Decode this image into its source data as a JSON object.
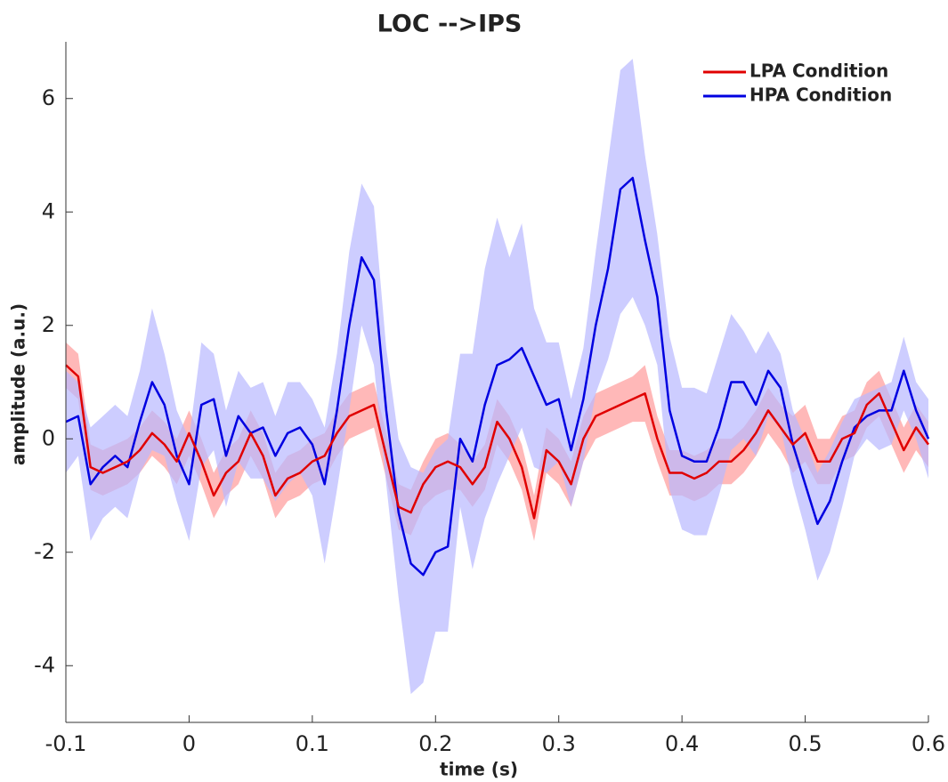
{
  "chart_data": {
    "type": "line",
    "title": "LOC -->IPS",
    "x_label": "time (s)",
    "y_label": "amplitude (a.u.)",
    "x": [
      -0.1,
      -0.09,
      -0.08,
      -0.07,
      -0.06,
      -0.05,
      -0.04,
      -0.03,
      -0.02,
      -0.01,
      0,
      0.01,
      0.02,
      0.03,
      0.04,
      0.05,
      0.06,
      0.07,
      0.08,
      0.09,
      0.1,
      0.11,
      0.12,
      0.13,
      0.14,
      0.15,
      0.16,
      0.17,
      0.18,
      0.19,
      0.2,
      0.21,
      0.22,
      0.23,
      0.24,
      0.25,
      0.26,
      0.27,
      0.28,
      0.29,
      0.3,
      0.31,
      0.32,
      0.33,
      0.34,
      0.35,
      0.36,
      0.37,
      0.38,
      0.39,
      0.4,
      0.41,
      0.42,
      0.43,
      0.44,
      0.45,
      0.46,
      0.47,
      0.48,
      0.49,
      0.5,
      0.51,
      0.52,
      0.53,
      0.54,
      0.55,
      0.56,
      0.57,
      0.58,
      0.59,
      0.6
    ],
    "series": [
      {
        "name": "LPA Condition",
        "color": "#e00000",
        "band_color": "#ff9a9a",
        "values": [
          1.3,
          1.1,
          -0.5,
          -0.6,
          -0.5,
          -0.4,
          -0.2,
          0.1,
          -0.1,
          -0.4,
          0.1,
          -0.4,
          -1.0,
          -0.6,
          -0.4,
          0.1,
          -0.3,
          -1.0,
          -0.7,
          -0.6,
          -0.4,
          -0.3,
          0.1,
          0.4,
          0.5,
          0.6,
          -0.3,
          -1.2,
          -1.3,
          -0.8,
          -0.5,
          -0.4,
          -0.5,
          -0.8,
          -0.5,
          0.3,
          0.0,
          -0.5,
          -1.4,
          -0.2,
          -0.4,
          -0.8,
          0.0,
          0.4,
          0.5,
          0.6,
          0.7,
          0.8,
          0.0,
          -0.6,
          -0.6,
          -0.7,
          -0.6,
          -0.4,
          -0.4,
          -0.2,
          0.1,
          0.5,
          0.2,
          -0.1,
          0.1,
          -0.4,
          -0.4,
          0.0,
          0.1,
          0.6,
          0.8,
          0.3,
          -0.2,
          0.2,
          -0.1
        ],
        "upper": [
          1.7,
          1.5,
          -0.1,
          -0.2,
          -0.1,
          0.0,
          0.2,
          0.5,
          0.3,
          0.0,
          0.5,
          0.0,
          -0.6,
          -0.2,
          0.0,
          0.5,
          0.1,
          -0.6,
          -0.3,
          -0.2,
          0.0,
          0.1,
          0.5,
          0.8,
          0.9,
          1.0,
          0.1,
          -0.8,
          -0.9,
          -0.4,
          0.0,
          0.1,
          -0.1,
          -0.4,
          -0.1,
          0.7,
          0.4,
          -0.1,
          -1.0,
          0.2,
          0.0,
          -0.4,
          0.4,
          0.8,
          0.9,
          1.0,
          1.1,
          1.3,
          0.4,
          -0.2,
          -0.2,
          -0.3,
          -0.2,
          0.0,
          0.0,
          0.2,
          0.5,
          0.9,
          0.6,
          0.4,
          0.6,
          0.0,
          0.0,
          0.4,
          0.5,
          1.0,
          1.2,
          0.7,
          0.2,
          0.6,
          0.3
        ],
        "lower": [
          0.9,
          0.7,
          -0.9,
          -1.0,
          -0.9,
          -0.8,
          -0.6,
          -0.3,
          -0.5,
          -0.8,
          -0.3,
          -0.8,
          -1.4,
          -1.0,
          -0.8,
          -0.3,
          -0.7,
          -1.4,
          -1.1,
          -1.0,
          -0.8,
          -0.7,
          -0.3,
          0.0,
          0.1,
          0.2,
          -0.7,
          -1.6,
          -1.7,
          -1.2,
          -1.0,
          -0.9,
          -0.9,
          -1.2,
          -0.9,
          -0.1,
          -0.4,
          -0.9,
          -1.8,
          -0.6,
          -0.8,
          -1.2,
          -0.4,
          0.0,
          0.1,
          0.2,
          0.3,
          0.3,
          -0.4,
          -1.0,
          -1.0,
          -1.1,
          -1.0,
          -0.8,
          -0.8,
          -0.6,
          -0.3,
          0.1,
          -0.2,
          -0.6,
          -0.4,
          -0.8,
          -0.8,
          -0.4,
          -0.3,
          0.2,
          0.4,
          -0.1,
          -0.6,
          -0.2,
          -0.5
        ]
      },
      {
        "name": "HPA Condition",
        "color": "#0000e0",
        "band_color": "#b8b8ff",
        "values": [
          0.3,
          0.4,
          -0.8,
          -0.5,
          -0.3,
          -0.5,
          0.3,
          1.0,
          0.6,
          -0.3,
          -0.8,
          0.6,
          0.7,
          -0.3,
          0.4,
          0.1,
          0.2,
          -0.3,
          0.1,
          0.2,
          -0.1,
          -0.8,
          0.5,
          2.0,
          3.2,
          2.8,
          0.5,
          -1.3,
          -2.2,
          -2.4,
          -2.0,
          -1.9,
          0.0,
          -0.4,
          0.6,
          1.3,
          1.4,
          1.6,
          1.1,
          0.6,
          0.7,
          -0.2,
          0.7,
          2.0,
          3.0,
          4.4,
          4.6,
          3.5,
          2.5,
          0.5,
          -0.3,
          -0.4,
          -0.4,
          0.2,
          1.0,
          1.0,
          0.6,
          1.2,
          0.9,
          -0.1,
          -0.8,
          -1.5,
          -1.1,
          -0.4,
          0.2,
          0.4,
          0.5,
          0.5,
          1.2,
          0.5,
          0.0
        ],
        "upper": [
          1.2,
          1.0,
          0.2,
          0.4,
          0.6,
          0.4,
          1.2,
          2.3,
          1.5,
          0.5,
          0.0,
          1.7,
          1.5,
          0.5,
          1.2,
          0.9,
          1.0,
          0.4,
          1.0,
          1.0,
          0.7,
          0.2,
          1.5,
          3.3,
          4.5,
          4.1,
          1.6,
          0.0,
          -0.5,
          -0.6,
          -0.2,
          0.0,
          1.5,
          1.5,
          3.0,
          3.9,
          3.2,
          3.8,
          2.3,
          1.7,
          1.7,
          0.7,
          1.6,
          3.3,
          4.9,
          6.5,
          6.7,
          5.0,
          3.6,
          1.8,
          0.9,
          0.9,
          0.8,
          1.5,
          2.2,
          1.9,
          1.5,
          1.9,
          1.5,
          0.5,
          0.0,
          -0.6,
          -0.2,
          0.3,
          0.7,
          0.8,
          0.9,
          1.0,
          1.8,
          1.0,
          0.7
        ],
        "lower": [
          -0.6,
          -0.3,
          -1.8,
          -1.4,
          -1.2,
          -1.4,
          -0.6,
          -0.2,
          -0.3,
          -1.1,
          -1.8,
          -0.5,
          -0.2,
          -1.2,
          -0.4,
          -0.7,
          -0.7,
          -1.1,
          -0.8,
          -0.6,
          -1.0,
          -2.2,
          -0.9,
          0.5,
          2.0,
          1.3,
          -0.8,
          -2.8,
          -4.5,
          -4.3,
          -3.4,
          -3.4,
          -1.2,
          -2.3,
          -1.4,
          -0.8,
          -0.3,
          0.2,
          -0.5,
          -0.6,
          -0.4,
          -1.2,
          -0.4,
          0.8,
          1.4,
          2.2,
          2.5,
          2.0,
          1.3,
          -0.9,
          -1.6,
          -1.7,
          -1.7,
          -1.0,
          -0.2,
          0.0,
          -0.3,
          0.4,
          0.2,
          -0.8,
          -1.6,
          -2.5,
          -2.0,
          -1.2,
          -0.3,
          0.0,
          -0.2,
          -0.1,
          0.5,
          0.0,
          -0.7
        ]
      }
    ],
    "xlim": [
      -0.1,
      0.6
    ],
    "xticks": [
      -0.1,
      0,
      0.1,
      0.2,
      0.3,
      0.4,
      0.5,
      0.6
    ],
    "ylim": [
      -5,
      7
    ],
    "yticks": [
      -4,
      -2,
      0,
      2,
      4,
      6
    ],
    "grid": false,
    "legend": "upper right"
  }
}
